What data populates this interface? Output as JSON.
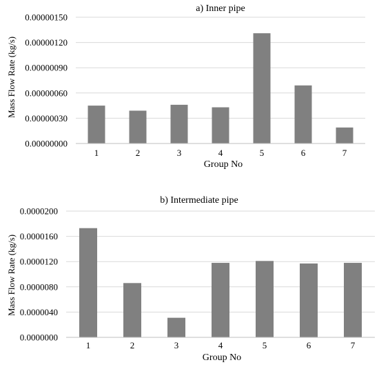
{
  "bar_color": "#808080",
  "grid_color": "#d9d9d9",
  "chart_data": [
    {
      "type": "bar",
      "title": "a) Inner pipe",
      "xlabel": "Group No",
      "ylabel": "Mass Flow Rate (kg/s)",
      "categories": [
        "1",
        "2",
        "3",
        "4",
        "5",
        "6",
        "7"
      ],
      "values": [
        4.5e-07,
        3.9e-07,
        4.6e-07,
        4.3e-07,
        1.31e-06,
        6.9e-07,
        1.9e-07
      ],
      "ylim": [
        0,
        1.5e-06
      ],
      "yticks": [
        {
          "value": 0,
          "label": "0.00000000"
        },
        {
          "value": 3e-07,
          "label": "0.00000030"
        },
        {
          "value": 6e-07,
          "label": "0.00000060"
        },
        {
          "value": 9e-07,
          "label": "0.00000090"
        },
        {
          "value": 1.2e-06,
          "label": "0.00000120"
        },
        {
          "value": 1.5e-06,
          "label": "0.00000150"
        }
      ],
      "grid": true
    },
    {
      "type": "bar",
      "title": "b) Intermediate pipe",
      "xlabel": "Group No",
      "ylabel": "Mass Flow Rate (kg/s)",
      "categories": [
        "1",
        "2",
        "3",
        "4",
        "5",
        "6",
        "7"
      ],
      "values": [
        1.73e-05,
        8.6e-06,
        3.1e-06,
        1.18e-05,
        1.21e-05,
        1.17e-05,
        1.18e-05
      ],
      "ylim": [
        0,
        2e-05
      ],
      "yticks": [
        {
          "value": 0,
          "label": "0.0000000"
        },
        {
          "value": 4e-06,
          "label": "0.0000040"
        },
        {
          "value": 8e-06,
          "label": "0.0000080"
        },
        {
          "value": 1.2e-05,
          "label": "0.0000120"
        },
        {
          "value": 1.6e-05,
          "label": "0.0000160"
        },
        {
          "value": 2e-05,
          "label": "0.0000200"
        }
      ],
      "grid": true
    }
  ]
}
